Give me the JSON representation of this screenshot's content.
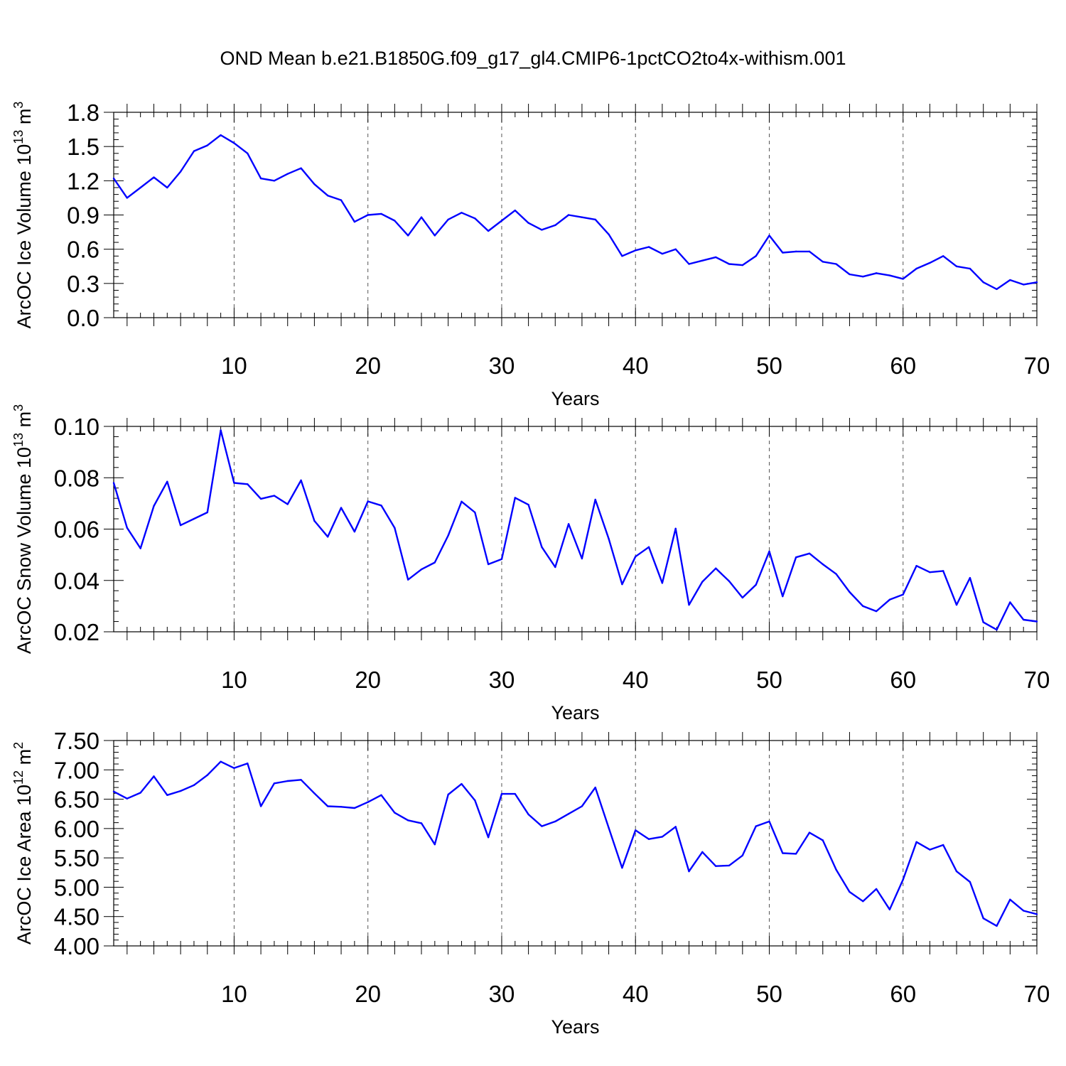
{
  "title": "OND Mean b.e21.B1850G.f09_g17_gl4.CMIP6-1pctCO2to4x-withism.001",
  "colors": {
    "line": "#0000ff",
    "axis": "#000000",
    "grid": "#555555"
  },
  "chart_data": [
    {
      "type": "line",
      "xlabel": "Years",
      "ylabel_main": "ArcOC Ice Volume 10",
      "ylabel_sup": "13",
      "ylabel_unit": " m",
      "ylabel_unit_sup": "3",
      "xlim": [
        1,
        70
      ],
      "ylim": [
        0,
        1.8
      ],
      "xticks": [
        10,
        20,
        30,
        40,
        50,
        60,
        70
      ],
      "yticks": [
        "0.0",
        "0.3",
        "0.6",
        "0.9",
        "1.2",
        "1.5",
        "1.8"
      ],
      "grid": "vertical dashed",
      "x": [
        1,
        2,
        3,
        4,
        5,
        6,
        7,
        8,
        9,
        10,
        11,
        12,
        13,
        14,
        15,
        16,
        17,
        18,
        19,
        20,
        21,
        22,
        23,
        24,
        25,
        26,
        27,
        28,
        29,
        30,
        31,
        32,
        33,
        34,
        35,
        36,
        37,
        38,
        39,
        40,
        41,
        42,
        43,
        44,
        45,
        46,
        47,
        48,
        49,
        50,
        51,
        52,
        53,
        54,
        55,
        56,
        57,
        58,
        59,
        60,
        61,
        62,
        63,
        64,
        65,
        66,
        67,
        68,
        69,
        70
      ],
      "values": [
        1.22,
        1.05,
        1.14,
        1.23,
        1.14,
        1.28,
        1.46,
        1.51,
        1.6,
        1.53,
        1.44,
        1.22,
        1.2,
        1.26,
        1.31,
        1.17,
        1.07,
        1.03,
        0.84,
        0.9,
        0.91,
        0.85,
        0.72,
        0.88,
        0.72,
        0.86,
        0.92,
        0.87,
        0.76,
        0.85,
        0.94,
        0.83,
        0.77,
        0.81,
        0.9,
        0.88,
        0.86,
        0.73,
        0.54,
        0.59,
        0.62,
        0.56,
        0.6,
        0.47,
        0.5,
        0.53,
        0.47,
        0.46,
        0.54,
        0.72,
        0.57,
        0.58,
        0.58,
        0.49,
        0.47,
        0.38,
        0.36,
        0.39,
        0.37,
        0.34,
        0.43,
        0.48,
        0.54,
        0.45,
        0.43,
        0.31,
        0.25,
        0.33,
        0.29,
        0.31
      ]
    },
    {
      "type": "line",
      "xlabel": "Years",
      "ylabel_main": "ArcOC Snow Volume 10",
      "ylabel_sup": "13",
      "ylabel_unit": " m",
      "ylabel_unit_sup": "3",
      "xlim": [
        1,
        70
      ],
      "ylim": [
        0.02,
        0.1
      ],
      "xticks": [
        10,
        20,
        30,
        40,
        50,
        60,
        70
      ],
      "yticks": [
        "0.02",
        "0.04",
        "0.06",
        "0.08",
        "0.10"
      ],
      "grid": "vertical dashed",
      "x": [
        1,
        2,
        3,
        4,
        5,
        6,
        7,
        8,
        9,
        10,
        11,
        12,
        13,
        14,
        15,
        16,
        17,
        18,
        19,
        20,
        21,
        22,
        23,
        24,
        25,
        26,
        27,
        28,
        29,
        30,
        31,
        32,
        33,
        34,
        35,
        36,
        37,
        38,
        39,
        40,
        41,
        42,
        43,
        44,
        45,
        46,
        47,
        48,
        49,
        50,
        51,
        52,
        53,
        54,
        55,
        56,
        57,
        58,
        59,
        60,
        61,
        62,
        63,
        64,
        65,
        66,
        67,
        68,
        69,
        70
      ],
      "values": [
        0.078,
        0.0605,
        0.0525,
        0.069,
        0.0785,
        0.0615,
        0.064,
        0.0665,
        0.0985,
        0.078,
        0.0775,
        0.0718,
        0.073,
        0.0697,
        0.079,
        0.0632,
        0.057,
        0.0683,
        0.059,
        0.0708,
        0.0692,
        0.0605,
        0.0403,
        0.0443,
        0.047,
        0.0575,
        0.0707,
        0.0665,
        0.0463,
        0.0483,
        0.0722,
        0.0695,
        0.053,
        0.0452,
        0.062,
        0.0485,
        0.0715,
        0.0562,
        0.0385,
        0.0493,
        0.053,
        0.039,
        0.0602,
        0.0305,
        0.0395,
        0.0447,
        0.0397,
        0.0333,
        0.0383,
        0.0513,
        0.0338,
        0.049,
        0.0505,
        0.0463,
        0.0425,
        0.0355,
        0.03,
        0.028,
        0.0325,
        0.0345,
        0.0457,
        0.0432,
        0.0437,
        0.0305,
        0.041,
        0.0237,
        0.0208,
        0.0315,
        0.0247,
        0.024
      ]
    },
    {
      "type": "line",
      "xlabel": "Years",
      "ylabel_main": "ArcOC Ice Area 10",
      "ylabel_sup": "12",
      "ylabel_unit": " m",
      "ylabel_unit_sup": "2",
      "xlim": [
        1,
        70
      ],
      "ylim": [
        4.0,
        7.5
      ],
      "xticks": [
        10,
        20,
        30,
        40,
        50,
        60,
        70
      ],
      "yticks": [
        "4.00",
        "4.50",
        "5.00",
        "5.50",
        "6.00",
        "6.50",
        "7.00",
        "7.50"
      ],
      "grid": "vertical dashed",
      "x": [
        1,
        2,
        3,
        4,
        5,
        6,
        7,
        8,
        9,
        10,
        11,
        12,
        13,
        14,
        15,
        16,
        17,
        18,
        19,
        20,
        21,
        22,
        23,
        24,
        25,
        26,
        27,
        28,
        29,
        30,
        31,
        32,
        33,
        34,
        35,
        36,
        37,
        38,
        39,
        40,
        41,
        42,
        43,
        44,
        45,
        46,
        47,
        48,
        49,
        50,
        51,
        52,
        53,
        54,
        55,
        56,
        57,
        58,
        59,
        60,
        61,
        62,
        63,
        64,
        65,
        66,
        67,
        68,
        69,
        70
      ],
      "values": [
        6.63,
        6.51,
        6.61,
        6.89,
        6.57,
        6.64,
        6.74,
        6.91,
        7.14,
        7.03,
        7.11,
        6.38,
        6.77,
        6.81,
        6.83,
        6.6,
        6.38,
        6.37,
        6.35,
        6.45,
        6.57,
        6.27,
        6.14,
        6.09,
        5.73,
        6.58,
        6.76,
        6.48,
        5.85,
        6.59,
        6.59,
        6.24,
        6.04,
        6.12,
        6.25,
        6.38,
        6.7,
        6.01,
        5.33,
        5.97,
        5.82,
        5.86,
        6.03,
        5.27,
        5.6,
        5.36,
        5.37,
        5.54,
        6.04,
        6.12,
        5.58,
        5.57,
        5.93,
        5.8,
        5.3,
        4.92,
        4.76,
        4.97,
        4.62,
        5.13,
        5.77,
        5.64,
        5.72,
        5.27,
        5.09,
        4.47,
        4.34,
        4.79,
        4.6,
        4.54
      ]
    }
  ]
}
